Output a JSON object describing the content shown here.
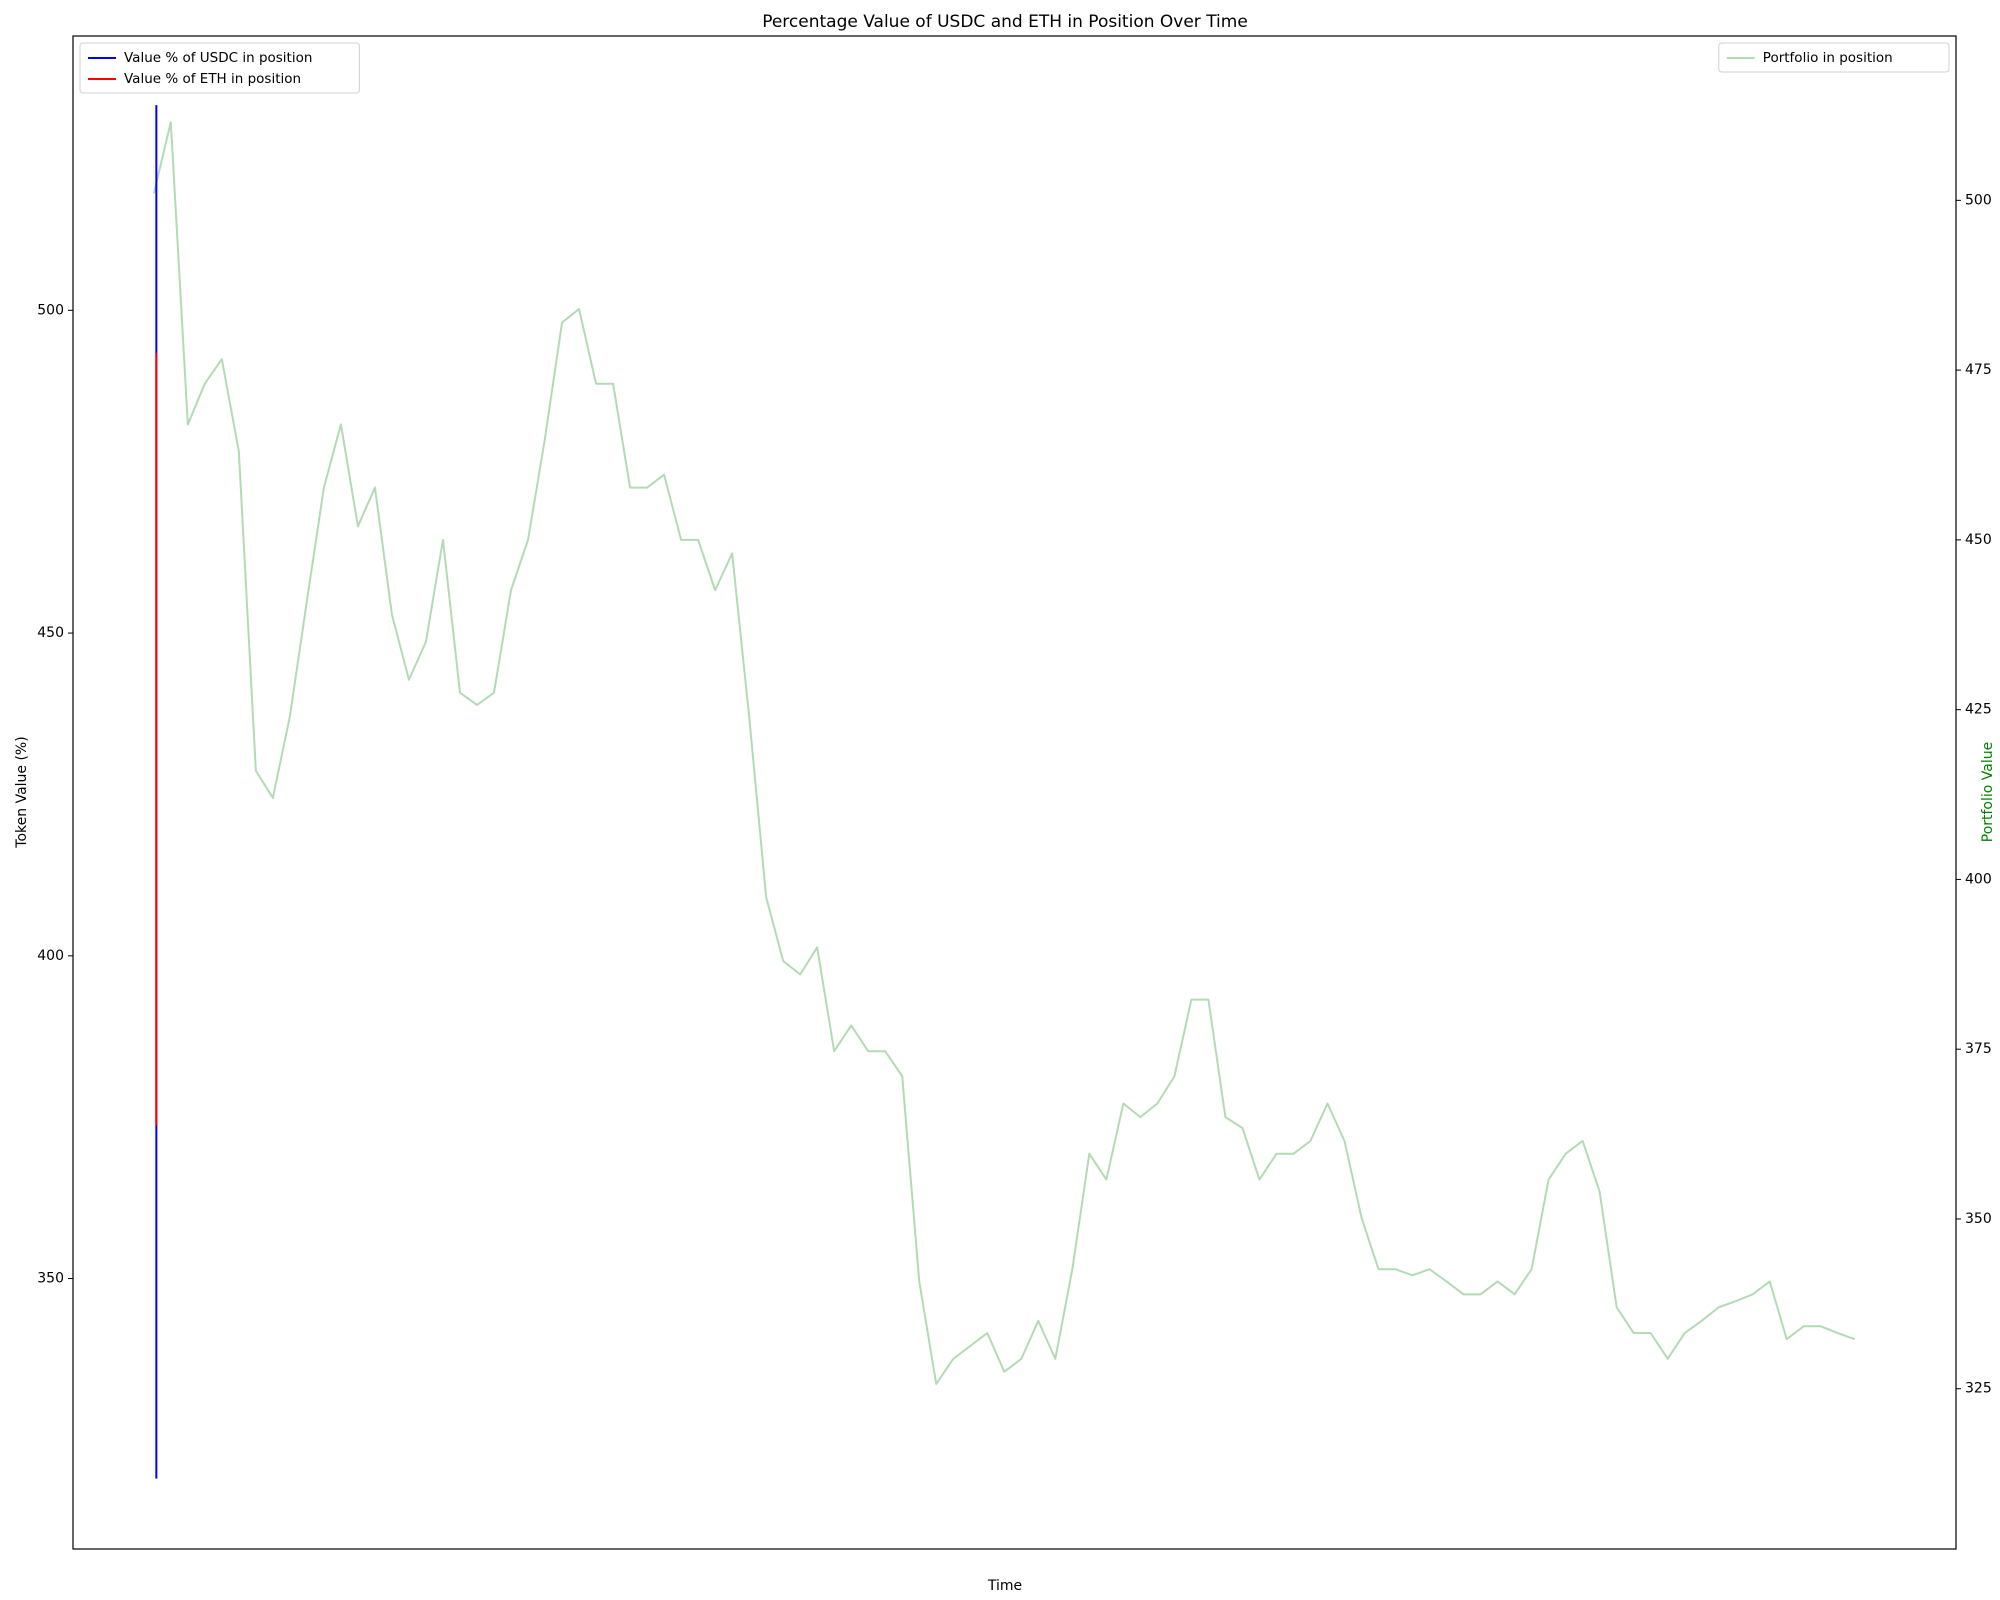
{
  "chart_data": {
    "type": "line",
    "title": "Percentage Value of USDC and ETH in Position Over Time",
    "xlabel": "Time",
    "ylabel": "Token Value (%)",
    "y2label": "Portfolio Value",
    "y2label_color": "green",
    "xlim": [
      -4.75,
      105.95
    ],
    "ylim": [
      308.1,
      542.5
    ],
    "yticks": [
      350,
      400,
      450,
      500
    ],
    "y2lim": [
      301.4,
      524.2
    ],
    "y2ticks": [
      325,
      350,
      375,
      400,
      425,
      450,
      475,
      500
    ],
    "legend": "upper left",
    "legend2": "upper right",
    "series": [
      {
        "name": "Value % of USDC in position",
        "color": "#0000ff",
        "x": [
          0.15,
          0.15,
          0.15,
          0.15
        ],
        "values": [
          531.8,
          517,
          372,
          319
        ]
      },
      {
        "name": "Value % of ETH in position",
        "color": "#ff0000",
        "x": [
          0.15,
          0.15,
          0.15,
          0.15
        ],
        "values": [
          493.4,
          429,
          442,
          373.7
        ]
      },
      {
        "name": "Portfolio in position",
        "color": "#b3dbb3",
        "axis": "y2",
        "x": [
          0,
          1,
          2,
          3,
          4,
          5,
          6,
          7,
          8,
          9,
          10,
          11,
          12,
          13,
          14,
          15,
          16,
          17,
          18,
          19,
          20,
          21,
          22,
          23,
          24,
          25,
          26,
          27,
          28,
          29,
          30,
          31,
          32,
          33,
          34,
          35,
          36,
          37,
          38,
          39,
          40,
          41,
          42,
          43,
          44,
          45,
          46,
          47,
          48,
          49,
          50,
          51,
          52,
          53,
          54,
          55,
          56,
          57,
          58,
          59,
          60,
          61,
          62,
          63,
          64,
          65,
          66,
          67,
          68,
          69,
          70,
          71,
          72,
          73,
          74,
          75,
          76,
          77,
          78,
          79,
          80,
          81,
          82,
          83,
          84,
          85,
          86,
          87,
          88,
          89,
          90,
          91,
          92,
          93,
          94,
          95,
          96,
          97,
          98,
          99,
          100
        ],
        "values": [
          501,
          511.5,
          467,
          473,
          476.6,
          463,
          416,
          412,
          424,
          441,
          457.7,
          467,
          452,
          457.7,
          439,
          429.4,
          435,
          450,
          427.5,
          425.7,
          427.5,
          442.6,
          450,
          465,
          482,
          484,
          473,
          473,
          457.7,
          457.7,
          459.6,
          450,
          450,
          442.6,
          448,
          424,
          397.4,
          388,
          386,
          390,
          374.7,
          378.5,
          374.7,
          374.7,
          371,
          340.8,
          325.7,
          329.4,
          331.3,
          333.2,
          327.5,
          329.4,
          335,
          329.4,
          342.6,
          359.6,
          355.8,
          367,
          365,
          367,
          371,
          382.3,
          382.3,
          365,
          363.4,
          355.8,
          359.6,
          359.6,
          361.5,
          367,
          361.5,
          350.2,
          342.6,
          342.6,
          341.7,
          342.6,
          340.8,
          338.9,
          338.9,
          340.8,
          338.9,
          342.6,
          355.8,
          359.6,
          361.5,
          354,
          337,
          333.2,
          333.2,
          329.4,
          333.2,
          335,
          337,
          337.9,
          338.9,
          340.8,
          332.3,
          334.2,
          334.2,
          333.2,
          332.3
        ]
      }
    ]
  }
}
